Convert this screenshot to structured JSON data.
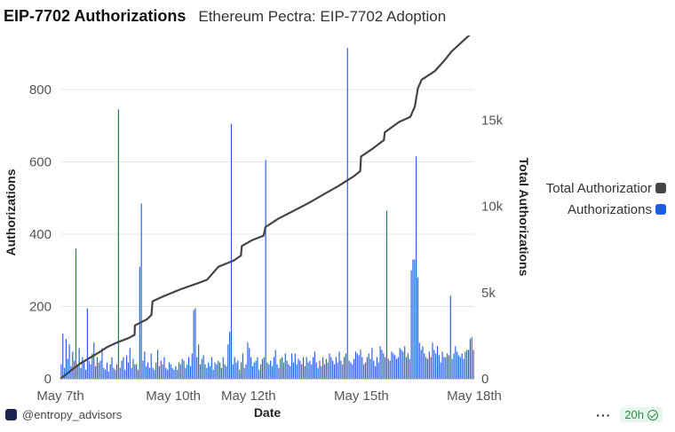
{
  "header": {
    "title": "EIP-7702 Authorizations",
    "subtitle": "Ethereum Pectra: EIP-7702 Adoption"
  },
  "footer": {
    "handle": "@entropy_advisors",
    "more": "···",
    "badge": "20h"
  },
  "colors": {
    "bar": "#1f5ce0",
    "line": "#444444",
    "grid": "#e6e6e6"
  },
  "chart_data": {
    "type": "bar+line",
    "xlabel": "Date",
    "ylabel": "Authorizations",
    "y2label": "Total Authorizations",
    "ylim": [
      0,
      920
    ],
    "y2lim": [
      0,
      19300
    ],
    "yticks": [
      0,
      200,
      400,
      600,
      800
    ],
    "y2ticks": [
      0,
      5000,
      10000,
      15000
    ],
    "y2ticklabels": [
      "0",
      "5k",
      "10k",
      "15k"
    ],
    "xticks": [
      {
        "t": 0,
        "label": "May 7th"
      },
      {
        "t": 3,
        "label": "May 10th"
      },
      {
        "t": 5,
        "label": "May 12th"
      },
      {
        "t": 8,
        "label": "May 15th"
      },
      {
        "t": 11,
        "label": "May 18th"
      }
    ],
    "legend": [
      {
        "name": "Total Authorizations",
        "label": "Total Authorizatior",
        "color": "#444444"
      },
      {
        "name": "Authorizations",
        "label": "Authorizations",
        "color": "#1f5ce0"
      }
    ],
    "series": [
      {
        "name": "Authorizations",
        "type": "bar",
        "x_step_days": 0.0417,
        "values": [
          40,
          125,
          30,
          110,
          55,
          95,
          35,
          75,
          50,
          360,
          40,
          85,
          30,
          60,
          45,
          25,
          195,
          50,
          40,
          70,
          100,
          35,
          60,
          45,
          50,
          85,
          30,
          25,
          45,
          20,
          40,
          60,
          30,
          25,
          40,
          745,
          30,
          50,
          60,
          25,
          65,
          45,
          85,
          30,
          55,
          40,
          40,
          25,
          310,
          485,
          50,
          75,
          35,
          45,
          30,
          70,
          30,
          25,
          45,
          80,
          35,
          50,
          40,
          60,
          30,
          25,
          45,
          40,
          30,
          25,
          35,
          25,
          45,
          40,
          55,
          50,
          30,
          40,
          60,
          35,
          70,
          190,
          195,
          60,
          95,
          40,
          55,
          65,
          40,
          30,
          45,
          35,
          60,
          25,
          45,
          40,
          50,
          45,
          30,
          60,
          40,
          35,
          95,
          130,
          705,
          40,
          60,
          45,
          50,
          25,
          45,
          70,
          30,
          40,
          100,
          85,
          60,
          35,
          45,
          50,
          60,
          25,
          40,
          55,
          60,
          605,
          45,
          40,
          50,
          35,
          60,
          80,
          40,
          30,
          55,
          60,
          45,
          70,
          50,
          40,
          35,
          70,
          45,
          70,
          40,
          55,
          50,
          40,
          60,
          35,
          60,
          45,
          50,
          40,
          60,
          75,
          45,
          30,
          50,
          35,
          60,
          40,
          55,
          45,
          70,
          60,
          50,
          40,
          60,
          45,
          75,
          50,
          40,
          60,
          70,
          915,
          50,
          45,
          40,
          55,
          75,
          70,
          65,
          80,
          60,
          40,
          45,
          60,
          70,
          55,
          85,
          50,
          35,
          60,
          45,
          90,
          80,
          70,
          60,
          465,
          55,
          50,
          75,
          70,
          65,
          55,
          60,
          85,
          80,
          75,
          90,
          60,
          70,
          55,
          300,
          330,
          330,
          615,
          280,
          100,
          80,
          90,
          70,
          60,
          55,
          75,
          60,
          100,
          80,
          70,
          90,
          65,
          45,
          75,
          60,
          60,
          70,
          65,
          230,
          55,
          70,
          90,
          75,
          65,
          60,
          70,
          55,
          75,
          80,
          80,
          110,
          115,
          80
        ]
      },
      {
        "name": "Total Authorizations",
        "type": "line",
        "points": [
          [
            0,
            0
          ],
          [
            0.5,
            850
          ],
          [
            1.0,
            1500
          ],
          [
            1.25,
            1850
          ],
          [
            1.5,
            2100
          ],
          [
            1.8,
            2350
          ],
          [
            1.97,
            2550
          ],
          [
            1.98,
            3100
          ],
          [
            2.3,
            3450
          ],
          [
            2.42,
            3700
          ],
          [
            2.45,
            4500
          ],
          [
            2.7,
            4750
          ],
          [
            3.2,
            5200
          ],
          [
            3.6,
            5500
          ],
          [
            3.9,
            5750
          ],
          [
            4.2,
            6500
          ],
          [
            4.6,
            6850
          ],
          [
            4.8,
            7150
          ],
          [
            4.82,
            7700
          ],
          [
            5.1,
            8050
          ],
          [
            5.4,
            8300
          ],
          [
            5.45,
            8800
          ],
          [
            5.8,
            9300
          ],
          [
            6.2,
            9750
          ],
          [
            6.6,
            10200
          ],
          [
            7.0,
            10700
          ],
          [
            7.4,
            11200
          ],
          [
            7.8,
            11750
          ],
          [
            7.97,
            12050
          ],
          [
            7.99,
            12900
          ],
          [
            8.3,
            13350
          ],
          [
            8.6,
            13850
          ],
          [
            8.62,
            14300
          ],
          [
            9.0,
            14900
          ],
          [
            9.3,
            15200
          ],
          [
            9.42,
            15800
          ],
          [
            9.5,
            16850
          ],
          [
            9.6,
            17350
          ],
          [
            9.95,
            17850
          ],
          [
            10.2,
            18450
          ],
          [
            10.4,
            19000
          ],
          [
            10.6,
            19400
          ],
          [
            10.9,
            20000
          ],
          [
            11.0,
            20350
          ]
        ]
      }
    ]
  }
}
